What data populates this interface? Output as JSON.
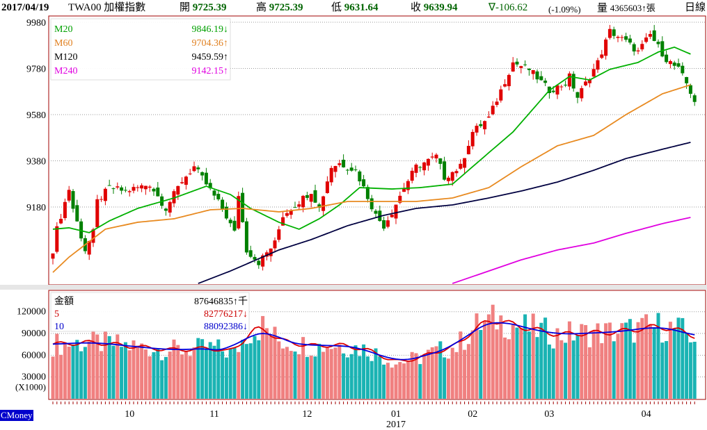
{
  "header": {
    "date": "2017/04/19",
    "symbol": "TWA00 加權指數",
    "open_label": "開",
    "open": "9725.39",
    "high_label": "高",
    "high": "9725.39",
    "low_label": "低",
    "low": "9631.64",
    "close_label": "收",
    "close": "9639.94",
    "change": "∇-106.62",
    "change_pct": "(-1.09%)",
    "volume_label": "量",
    "volume": "4365603↑張",
    "period": "日線"
  },
  "legend_main": [
    {
      "name": "M20",
      "value": "9846.19↓",
      "color": "#00a000"
    },
    {
      "name": "M60",
      "value": "9704.36↑",
      "color": "#e08020"
    },
    {
      "name": "M120",
      "value": "9459.59↑",
      "color": "#000000"
    },
    {
      "name": "M240",
      "value": "9142.15↑",
      "color": "#e000e0"
    }
  ],
  "legend_vol": [
    {
      "name": "金額",
      "value": "87646835↑千",
      "color": "#000000"
    },
    {
      "name": "5",
      "value": "82776217↓",
      "color": "#cc0000"
    },
    {
      "name": "10",
      "value": "88092386↓",
      "color": "#0000cc"
    }
  ],
  "brand": "CMoney",
  "colors": {
    "up": "#e00000",
    "down": "#008000",
    "vol_up": "#f08080",
    "vol_down": "#1ab3b3",
    "frame": "#a00000"
  },
  "chart_data": [
    {
      "type": "candlestick",
      "title": "TWA00 加權指數 日線",
      "bars": 160,
      "yticks": [
        9980,
        9780,
        9580,
        9380,
        9180
      ],
      "ylim": [
        8849,
        10020
      ],
      "xticks": [
        {
          "i": 19,
          "label": "10"
        },
        {
          "i": 40,
          "label": "11"
        },
        {
          "i": 63,
          "label": "12"
        },
        {
          "i": 85,
          "label": "01",
          "sub": "2017"
        },
        {
          "i": 104,
          "label": "02"
        },
        {
          "i": 123,
          "label": "03"
        },
        {
          "i": 147,
          "label": "04"
        }
      ],
      "close_trace": [
        [
          0,
          8994
        ],
        [
          1,
          9084
        ],
        [
          4,
          9258
        ],
        [
          5,
          9174
        ],
        [
          6,
          9114
        ],
        [
          8,
          8994
        ],
        [
          10,
          9069
        ],
        [
          11,
          9204
        ],
        [
          14,
          9264
        ],
        [
          18,
          9249
        ],
        [
          24,
          9279
        ],
        [
          28,
          9174
        ],
        [
          32,
          9294
        ],
        [
          35,
          9354
        ],
        [
          38,
          9279
        ],
        [
          42,
          9174
        ],
        [
          45,
          9069
        ],
        [
          46,
          9234
        ],
        [
          48,
          8994
        ],
        [
          51,
          8940
        ],
        [
          55,
          9024
        ],
        [
          57,
          9144
        ],
        [
          59,
          9174
        ],
        [
          64,
          9249
        ],
        [
          66,
          9174
        ],
        [
          69,
          9354
        ],
        [
          71,
          9369
        ],
        [
          75,
          9339
        ],
        [
          77,
          9264
        ],
        [
          80,
          9144
        ],
        [
          82,
          9099
        ],
        [
          84,
          9159
        ],
        [
          87,
          9264
        ],
        [
          90,
          9354
        ],
        [
          95,
          9399
        ],
        [
          97,
          9309
        ],
        [
          101,
          9354
        ],
        [
          104,
          9505
        ],
        [
          108,
          9565
        ],
        [
          111,
          9685
        ],
        [
          114,
          9806
        ],
        [
          118,
          9776
        ],
        [
          123,
          9685
        ],
        [
          127,
          9715
        ],
        [
          128,
          9745
        ],
        [
          130,
          9655
        ],
        [
          133,
          9745
        ],
        [
          135,
          9806
        ],
        [
          138,
          9941
        ],
        [
          142,
          9896
        ],
        [
          145,
          9851
        ],
        [
          148,
          9926
        ],
        [
          152,
          9820
        ],
        [
          155,
          9776
        ],
        [
          157,
          9715
        ],
        [
          159,
          9640
        ]
      ],
      "series": [
        {
          "name": "M20",
          "color": "#00b000",
          "points": [
            [
              0,
              9084
            ],
            [
              4,
              9090
            ],
            [
              9,
              9069
            ],
            [
              14,
              9120
            ],
            [
              21,
              9174
            ],
            [
              30,
              9219
            ],
            [
              38,
              9270
            ],
            [
              44,
              9234
            ],
            [
              49,
              9174
            ],
            [
              56,
              9114
            ],
            [
              61,
              9084
            ],
            [
              66,
              9129
            ],
            [
              71,
              9189
            ],
            [
              76,
              9264
            ],
            [
              84,
              9258
            ],
            [
              91,
              9264
            ],
            [
              99,
              9279
            ],
            [
              108,
              9415
            ],
            [
              114,
              9505
            ],
            [
              120,
              9625
            ],
            [
              123,
              9685
            ],
            [
              128,
              9745
            ],
            [
              133,
              9730
            ],
            [
              138,
              9776
            ],
            [
              145,
              9806
            ],
            [
              150,
              9851
            ],
            [
              154,
              9872
            ],
            [
              158,
              9842
            ]
          ]
        },
        {
          "name": "M60",
          "color": "#e88a20",
          "points": [
            [
              0,
              8897
            ],
            [
              4,
              8963
            ],
            [
              13,
              9084
            ],
            [
              21,
              9114
            ],
            [
              30,
              9129
            ],
            [
              39,
              9168
            ],
            [
              47,
              9174
            ],
            [
              56,
              9159
            ],
            [
              64,
              9174
            ],
            [
              73,
              9204
            ],
            [
              82,
              9204
            ],
            [
              90,
              9204
            ],
            [
              99,
              9219
            ],
            [
              108,
              9264
            ],
            [
              116,
              9354
            ],
            [
              125,
              9445
            ],
            [
              134,
              9490
            ],
            [
              142,
              9580
            ],
            [
              151,
              9670
            ],
            [
              158,
              9709
            ]
          ]
        },
        {
          "name": "M120",
          "color": "#000040",
          "points": [
            [
              36,
              8849
            ],
            [
              44,
              8903
            ],
            [
              56,
              8994
            ],
            [
              64,
              9039
            ],
            [
              73,
              9099
            ],
            [
              82,
              9144
            ],
            [
              90,
              9174
            ],
            [
              99,
              9189
            ],
            [
              108,
              9219
            ],
            [
              116,
              9249
            ],
            [
              125,
              9288
            ],
            [
              134,
              9339
            ],
            [
              142,
              9390
            ],
            [
              151,
              9430
            ],
            [
              158,
              9460
            ]
          ]
        },
        {
          "name": "M240",
          "color": "#e000e0",
          "points": [
            [
              99,
              8849
            ],
            [
              108,
              8903
            ],
            [
              116,
              8951
            ],
            [
              125,
              8994
            ],
            [
              134,
              9024
            ],
            [
              142,
              9066
            ],
            [
              151,
              9108
            ],
            [
              158,
              9135
            ]
          ]
        }
      ]
    },
    {
      "type": "bar",
      "title": "金額",
      "unit": "(X1000)",
      "yticks": [
        120000,
        90000,
        60000,
        30000
      ],
      "ylim": [
        0,
        140000
      ],
      "volume_trace": [
        [
          0,
          75000
        ],
        [
          10,
          78000
        ],
        [
          20,
          72000
        ],
        [
          30,
          67000
        ],
        [
          40,
          70000
        ],
        [
          45,
          62000
        ],
        [
          48,
          90000
        ],
        [
          52,
          100000
        ],
        [
          56,
          80000
        ],
        [
          65,
          72000
        ],
        [
          70,
          75000
        ],
        [
          78,
          68000
        ],
        [
          85,
          50000
        ],
        [
          90,
          55000
        ],
        [
          95,
          65000
        ],
        [
          100,
          72000
        ],
        [
          105,
          100000
        ],
        [
          110,
          110000
        ],
        [
          115,
          100000
        ],
        [
          120,
          95000
        ],
        [
          125,
          88000
        ],
        [
          130,
          90000
        ],
        [
          140,
          92000
        ],
        [
          150,
          100000
        ],
        [
          155,
          95000
        ],
        [
          159,
          85000
        ]
      ],
      "series": [
        {
          "name": "5",
          "color": "#dd0000"
        },
        {
          "name": "10",
          "color": "#0000dd"
        }
      ]
    }
  ]
}
